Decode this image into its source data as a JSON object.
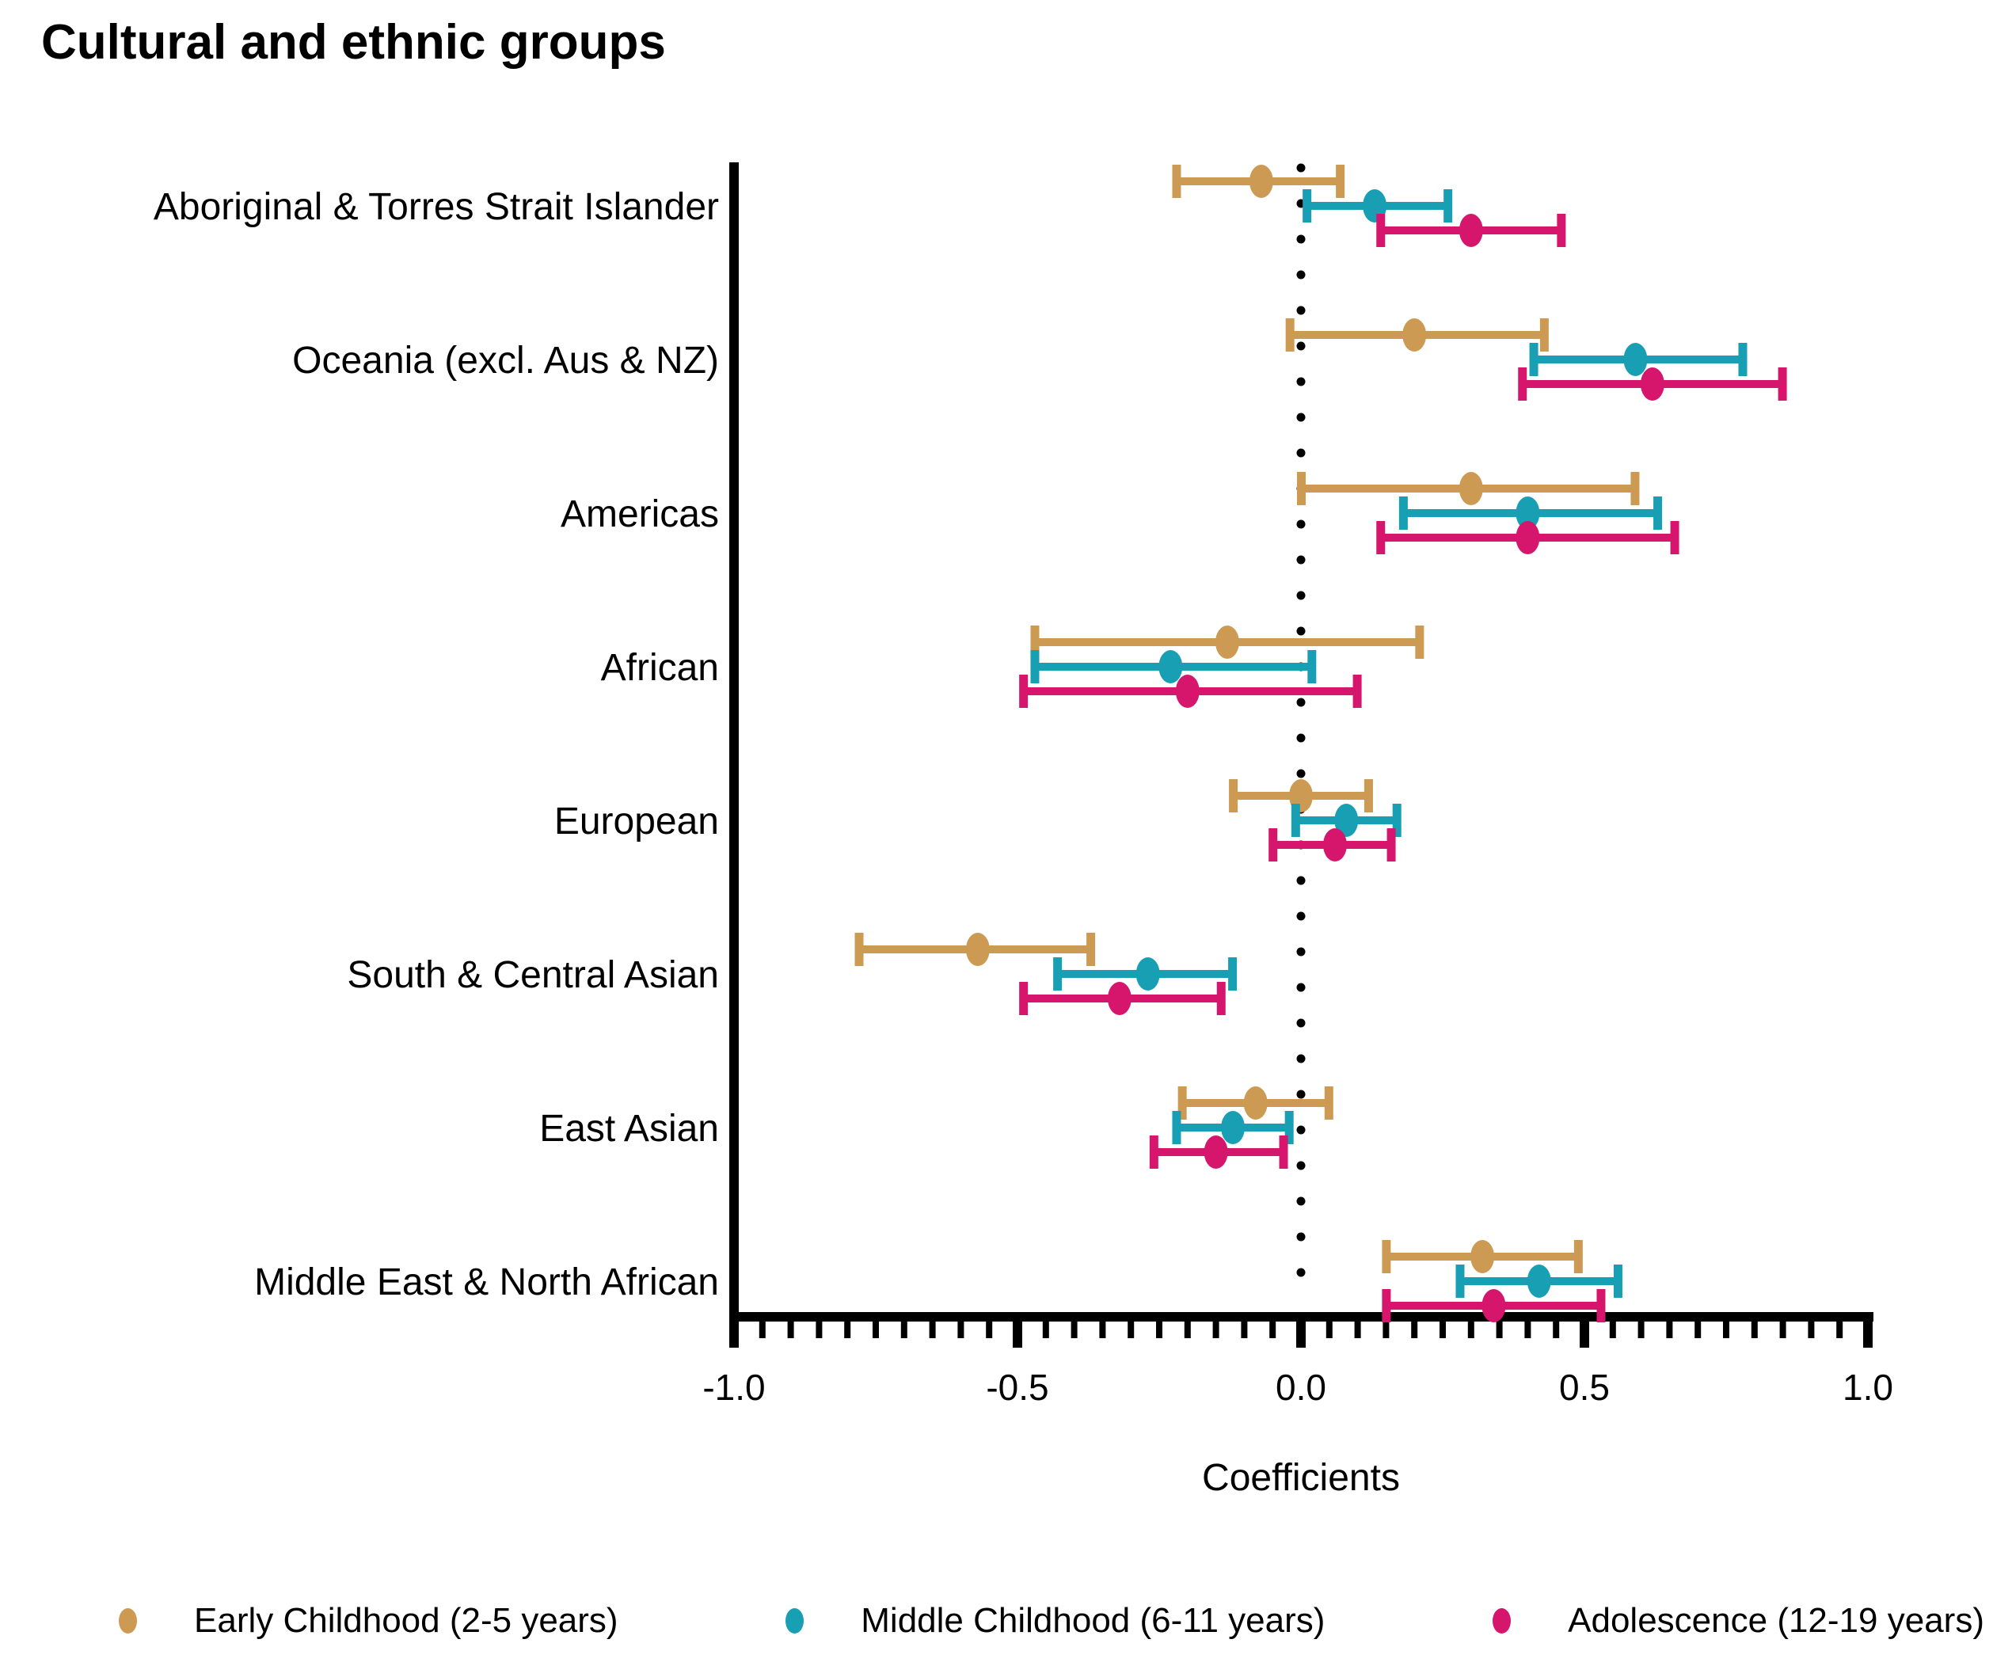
{
  "title": "Cultural and ethnic groups",
  "chart_data": {
    "type": "scatter",
    "subtype": "forest-plot-horizontal-error-bars",
    "title": "Cultural and ethnic groups",
    "xlabel": "Coefficients",
    "xlim": [
      -1.0,
      1.0
    ],
    "x_major_ticks": [
      -1.0,
      -0.5,
      0.0,
      0.5,
      1.0
    ],
    "x_major_tick_labels": [
      "-1.0",
      "-0.5",
      "0.0",
      "0.5",
      "1.0"
    ],
    "x_minor_tick_step": 0.05,
    "reference_line_x": 0.0,
    "reference_line_style": "dotted",
    "grid": false,
    "legend_position": "bottom",
    "categories": [
      "Aboriginal & Torres Strait Islander",
      "Oceania (excl. Aus & NZ)",
      "Americas",
      "African",
      "European",
      "South & Central Asian",
      "East Asian",
      "Middle East & North African"
    ],
    "series": [
      {
        "name": "Early Childhood (2-5 years)",
        "color": "#CC9A52",
        "points": [
          {
            "est": -0.07,
            "lo": -0.22,
            "hi": 0.07
          },
          {
            "est": 0.2,
            "lo": -0.02,
            "hi": 0.43
          },
          {
            "est": 0.3,
            "lo": 0.0,
            "hi": 0.59
          },
          {
            "est": -0.13,
            "lo": -0.47,
            "hi": 0.21
          },
          {
            "est": 0.0,
            "lo": -0.12,
            "hi": 0.12
          },
          {
            "est": -0.57,
            "lo": -0.78,
            "hi": -0.37
          },
          {
            "est": -0.08,
            "lo": -0.21,
            "hi": 0.05
          },
          {
            "est": 0.32,
            "lo": 0.15,
            "hi": 0.49
          }
        ]
      },
      {
        "name": "Middle Childhood (6-11 years)",
        "color": "#189FB4",
        "points": [
          {
            "est": 0.13,
            "lo": 0.01,
            "hi": 0.26
          },
          {
            "est": 0.59,
            "lo": 0.41,
            "hi": 0.78
          },
          {
            "est": 0.4,
            "lo": 0.18,
            "hi": 0.63
          },
          {
            "est": -0.23,
            "lo": -0.47,
            "hi": 0.02
          },
          {
            "est": 0.08,
            "lo": -0.01,
            "hi": 0.17
          },
          {
            "est": -0.27,
            "lo": -0.43,
            "hi": -0.12
          },
          {
            "est": -0.12,
            "lo": -0.22,
            "hi": -0.02
          },
          {
            "est": 0.42,
            "lo": 0.28,
            "hi": 0.56
          }
        ]
      },
      {
        "name": "Adolescence (12-19 years)",
        "color": "#D6156C",
        "points": [
          {
            "est": 0.3,
            "lo": 0.14,
            "hi": 0.46
          },
          {
            "est": 0.62,
            "lo": 0.39,
            "hi": 0.85
          },
          {
            "est": 0.4,
            "lo": 0.14,
            "hi": 0.66
          },
          {
            "est": -0.2,
            "lo": -0.49,
            "hi": 0.1
          },
          {
            "est": 0.06,
            "lo": -0.05,
            "hi": 0.16
          },
          {
            "est": -0.32,
            "lo": -0.49,
            "hi": -0.14
          },
          {
            "est": -0.15,
            "lo": -0.26,
            "hi": -0.03
          },
          {
            "est": 0.34,
            "lo": 0.15,
            "hi": 0.53
          }
        ]
      }
    ],
    "axis_color": "#000000",
    "text_color": "#000000"
  },
  "legend": {
    "items": [
      {
        "label": "Early Childhood (2-5 years)"
      },
      {
        "label": "Middle Childhood (6-11 years)"
      },
      {
        "label": "Adolescence (12-19 years)"
      }
    ]
  }
}
